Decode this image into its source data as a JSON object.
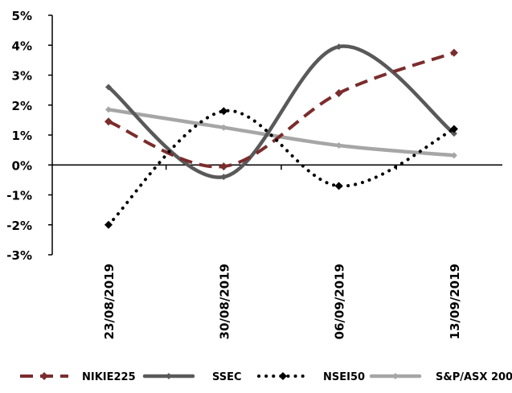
{
  "chart_data": {
    "type": "line",
    "title": "",
    "xlabel": "",
    "ylabel": "",
    "categories": [
      "23/08/2019",
      "30/08/2019",
      "06/09/2019",
      "13/09/2019"
    ],
    "ylim": [
      -3,
      5
    ],
    "y_ticks": [
      -3,
      -2,
      -1,
      0,
      1,
      2,
      3,
      4,
      5
    ],
    "y_tick_labels": [
      "-3%",
      "-2%",
      "-1%",
      "0%",
      "1%",
      "2%",
      "3%",
      "4%",
      "5%"
    ],
    "y_unit": "%",
    "grid": false,
    "legend_position": "bottom",
    "series": [
      {
        "name": "NIKIE225",
        "values": [
          1.45,
          -0.05,
          2.4,
          3.75
        ],
        "color": "#7b2c2c",
        "style": "dashed",
        "marker": "diamond"
      },
      {
        "name": "SSEC",
        "values": [
          2.6,
          -0.4,
          3.95,
          1.05
        ],
        "color": "#595959",
        "style": "solid",
        "marker": "diamond-small"
      },
      {
        "name": "NSEI50",
        "values": [
          -2.0,
          1.8,
          -0.7,
          1.2
        ],
        "color": "#000000",
        "style": "dotted",
        "marker": "diamond"
      },
      {
        "name": "S&P/ASX 200",
        "values": [
          1.85,
          1.25,
          0.65,
          0.32
        ],
        "color": "#a6a6a6",
        "style": "solid",
        "marker": "diamond-small"
      }
    ]
  }
}
